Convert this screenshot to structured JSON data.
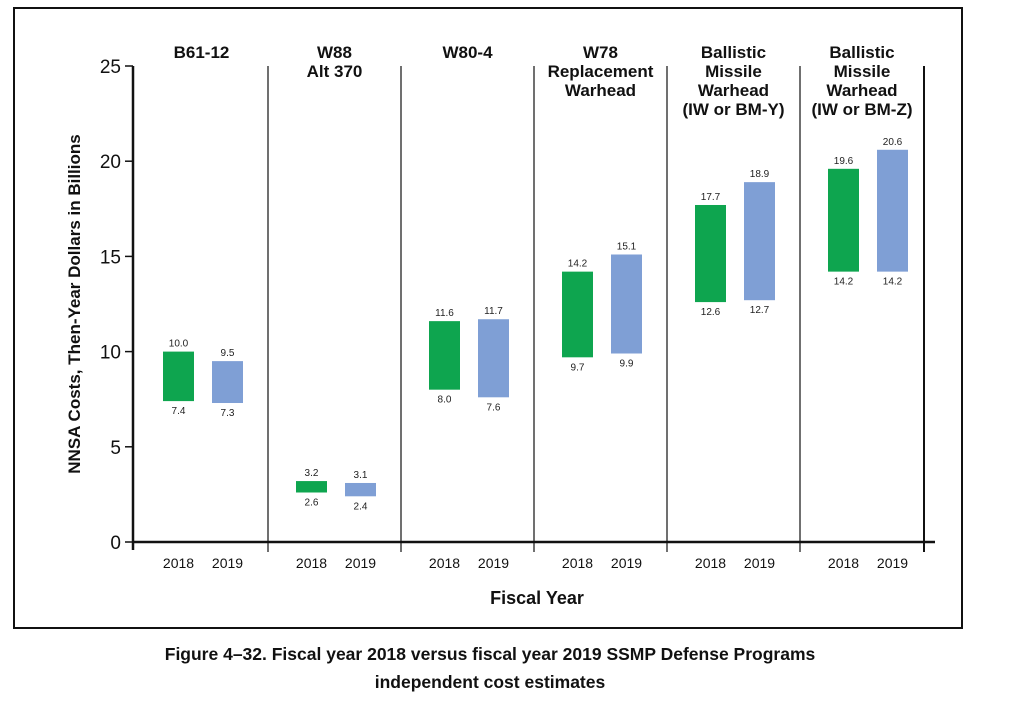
{
  "chart_data": {
    "type": "bar",
    "subtype": "floating range bars",
    "ylabel": "NNSA Costs, Then-Year Dollars in Billions",
    "xlabel": "Fiscal Year",
    "ylim": [
      0,
      25
    ],
    "yticks": [
      "0",
      "5",
      "10",
      "15",
      "20",
      "25"
    ],
    "grid": false,
    "colors": {
      "2018": "#0ea54f",
      "2019": "#7f9fd5"
    },
    "groups": [
      {
        "title": [
          "B61-12"
        ],
        "bars": [
          {
            "year": "2018",
            "low": 7.4,
            "high": 10.0,
            "low_label": "7.4",
            "high_label": "10.0"
          },
          {
            "year": "2019",
            "low": 7.3,
            "high": 9.5,
            "low_label": "7.3",
            "high_label": "9.5"
          }
        ]
      },
      {
        "title": [
          "W88",
          "Alt 370"
        ],
        "bars": [
          {
            "year": "2018",
            "low": 2.6,
            "high": 3.2,
            "low_label": "2.6",
            "high_label": "3.2"
          },
          {
            "year": "2019",
            "low": 2.4,
            "high": 3.1,
            "low_label": "2.4",
            "high_label": "3.1"
          }
        ]
      },
      {
        "title": [
          "W80-4"
        ],
        "bars": [
          {
            "year": "2018",
            "low": 8.0,
            "high": 11.6,
            "low_label": "8.0",
            "high_label": "11.6"
          },
          {
            "year": "2019",
            "low": 7.6,
            "high": 11.7,
            "low_label": "7.6",
            "high_label": "11.7"
          }
        ]
      },
      {
        "title": [
          "W78",
          "Replacement",
          "Warhead"
        ],
        "bars": [
          {
            "year": "2018",
            "low": 9.7,
            "high": 14.2,
            "low_label": "9.7",
            "high_label": "14.2"
          },
          {
            "year": "2019",
            "low": 9.9,
            "high": 15.1,
            "low_label": "9.9",
            "high_label": "15.1"
          }
        ]
      },
      {
        "title": [
          "Ballistic",
          "Missile",
          "Warhead",
          "(IW or BM-Y)"
        ],
        "bars": [
          {
            "year": "2018",
            "low": 12.6,
            "high": 17.7,
            "low_label": "12.6",
            "high_label": "17.7"
          },
          {
            "year": "2019",
            "low": 12.7,
            "high": 18.9,
            "low_label": "12.7",
            "high_label": "18.9"
          }
        ]
      },
      {
        "title": [
          "Ballistic",
          "Missile",
          "Warhead",
          "(IW or BM-Z)"
        ],
        "bars": [
          {
            "year": "2018",
            "low": 14.2,
            "high": 19.6,
            "low_label": "14.2",
            "high_label": "19.6"
          },
          {
            "year": "2019",
            "low": 14.2,
            "high": 20.6,
            "low_label": "14.2",
            "high_label": "20.6"
          }
        ]
      }
    ]
  },
  "caption": {
    "line1": "Figure 4–32.  Fiscal year 2018 versus fiscal year 2019 SSMP Defense Programs",
    "line2": "independent cost estimates"
  }
}
